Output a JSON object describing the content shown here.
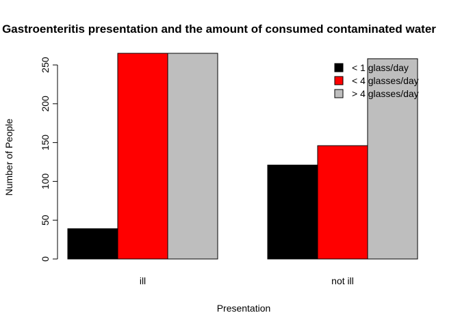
{
  "chart_data": {
    "type": "bar",
    "title": "Gastroenteritis presentation and the amount of consumed contaminated water",
    "xlabel": "Presentation",
    "ylabel": "Number of People",
    "categories": [
      "ill",
      "not ill"
    ],
    "series": [
      {
        "name": "< 1 glass/day",
        "color": "#000000",
        "values": [
          39,
          121
        ]
      },
      {
        "name": "< 4 glasses/day",
        "color": "#ff0000",
        "values": [
          265,
          146
        ]
      },
      {
        "name": "> 4 glasses/day",
        "color": "#bebebe",
        "values": [
          265,
          258
        ]
      }
    ],
    "ylim": [
      0,
      265
    ],
    "yticks": [
      "0",
      "50",
      "100",
      "150",
      "200",
      "250"
    ],
    "grid": false,
    "legend": "top-right"
  }
}
